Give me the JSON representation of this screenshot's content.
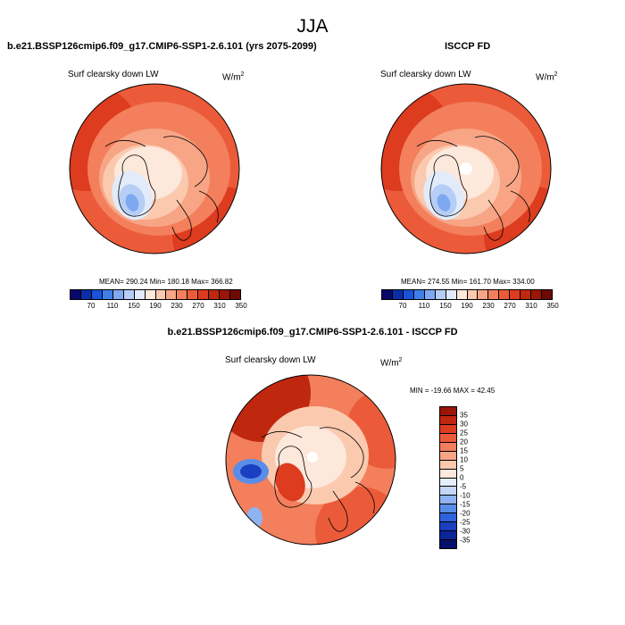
{
  "season": "JJA",
  "panels": [
    {
      "title": "b.e21.BSSP126cmip6.f09_g17.CMIP6-SSP1-2.6.101 (yrs 2075-2099)",
      "variable": "Surf clearsky down LW",
      "unit_base": "W/m",
      "unit_exp": "2",
      "stats": "MEAN= 290.24  Min= 180.18  Max= 366.82"
    },
    {
      "title": "ISCCP FD",
      "variable": "Surf clearsky down LW",
      "unit_base": "W/m",
      "unit_exp": "2",
      "stats": "MEAN= 274.55  Min= 161.70  Max= 334.00"
    },
    {
      "title": "b.e21.BSSP126cmip6.f09_g17.CMIP6-SSP1-2.6.101 - ISCCP FD",
      "variable": "Surf clearsky down LW",
      "unit_base": "W/m",
      "unit_exp": "2",
      "stats": "MIN = -19.66 MAX =  42.45"
    }
  ],
  "chart_data": [
    {
      "type": "heatmap",
      "projection": "polar stereographic (north pole)",
      "title": "b.e21.BSSP126cmip6.f09_g17.CMIP6-SSP1-2.6.101 (yrs 2075-2099)",
      "variable": "Surf clearsky down LW",
      "units": "W/m2",
      "mean": 290.24,
      "min": 180.18,
      "max": 366.82,
      "levels": [
        70,
        110,
        150,
        190,
        230,
        270,
        310,
        350
      ],
      "colors": [
        "#08086b",
        "#0c2ca8",
        "#1a52d8",
        "#3f7fe8",
        "#7ea8f0",
        "#b6cdf6",
        "#e2ebfa",
        "#fde8dc",
        "#fbc9ae",
        "#f7a585",
        "#f37f5d",
        "#ec5b39",
        "#dd3c1f",
        "#c0270f",
        "#9a1608",
        "#6e0a04"
      ]
    },
    {
      "type": "heatmap",
      "projection": "polar stereographic (north pole)",
      "title": "ISCCP FD",
      "variable": "Surf clearsky down LW",
      "units": "W/m2",
      "mean": 274.55,
      "min": 161.7,
      "max": 334.0,
      "levels": [
        70,
        110,
        150,
        190,
        230,
        270,
        310,
        350
      ],
      "colors": [
        "#08086b",
        "#0c2ca8",
        "#1a52d8",
        "#3f7fe8",
        "#7ea8f0",
        "#b6cdf6",
        "#e2ebfa",
        "#fde8dc",
        "#fbc9ae",
        "#f7a585",
        "#f37f5d",
        "#ec5b39",
        "#dd3c1f",
        "#c0270f",
        "#9a1608",
        "#6e0a04"
      ]
    },
    {
      "type": "heatmap",
      "projection": "polar stereographic (north pole)",
      "title": "b.e21.BSSP126cmip6.f09_g17.CMIP6-SSP1-2.6.101 - ISCCP FD",
      "variable": "Surf clearsky down LW",
      "units": "W/m2",
      "min": -19.66,
      "max": 42.45,
      "levels": [
        35,
        30,
        25,
        20,
        15,
        10,
        5,
        0,
        -5,
        -10,
        -15,
        -20,
        -25,
        -30,
        -35
      ],
      "colors": [
        "#9a1608",
        "#c0270f",
        "#dd3c1f",
        "#ec5b39",
        "#f37f5d",
        "#f7a585",
        "#fbc9ae",
        "#fde8dc",
        "#e6eefa",
        "#c4d6f6",
        "#8fb2f0",
        "#5a8de8",
        "#2f63dc",
        "#1a3fc0",
        "#0c2498",
        "#06106b"
      ]
    }
  ]
}
